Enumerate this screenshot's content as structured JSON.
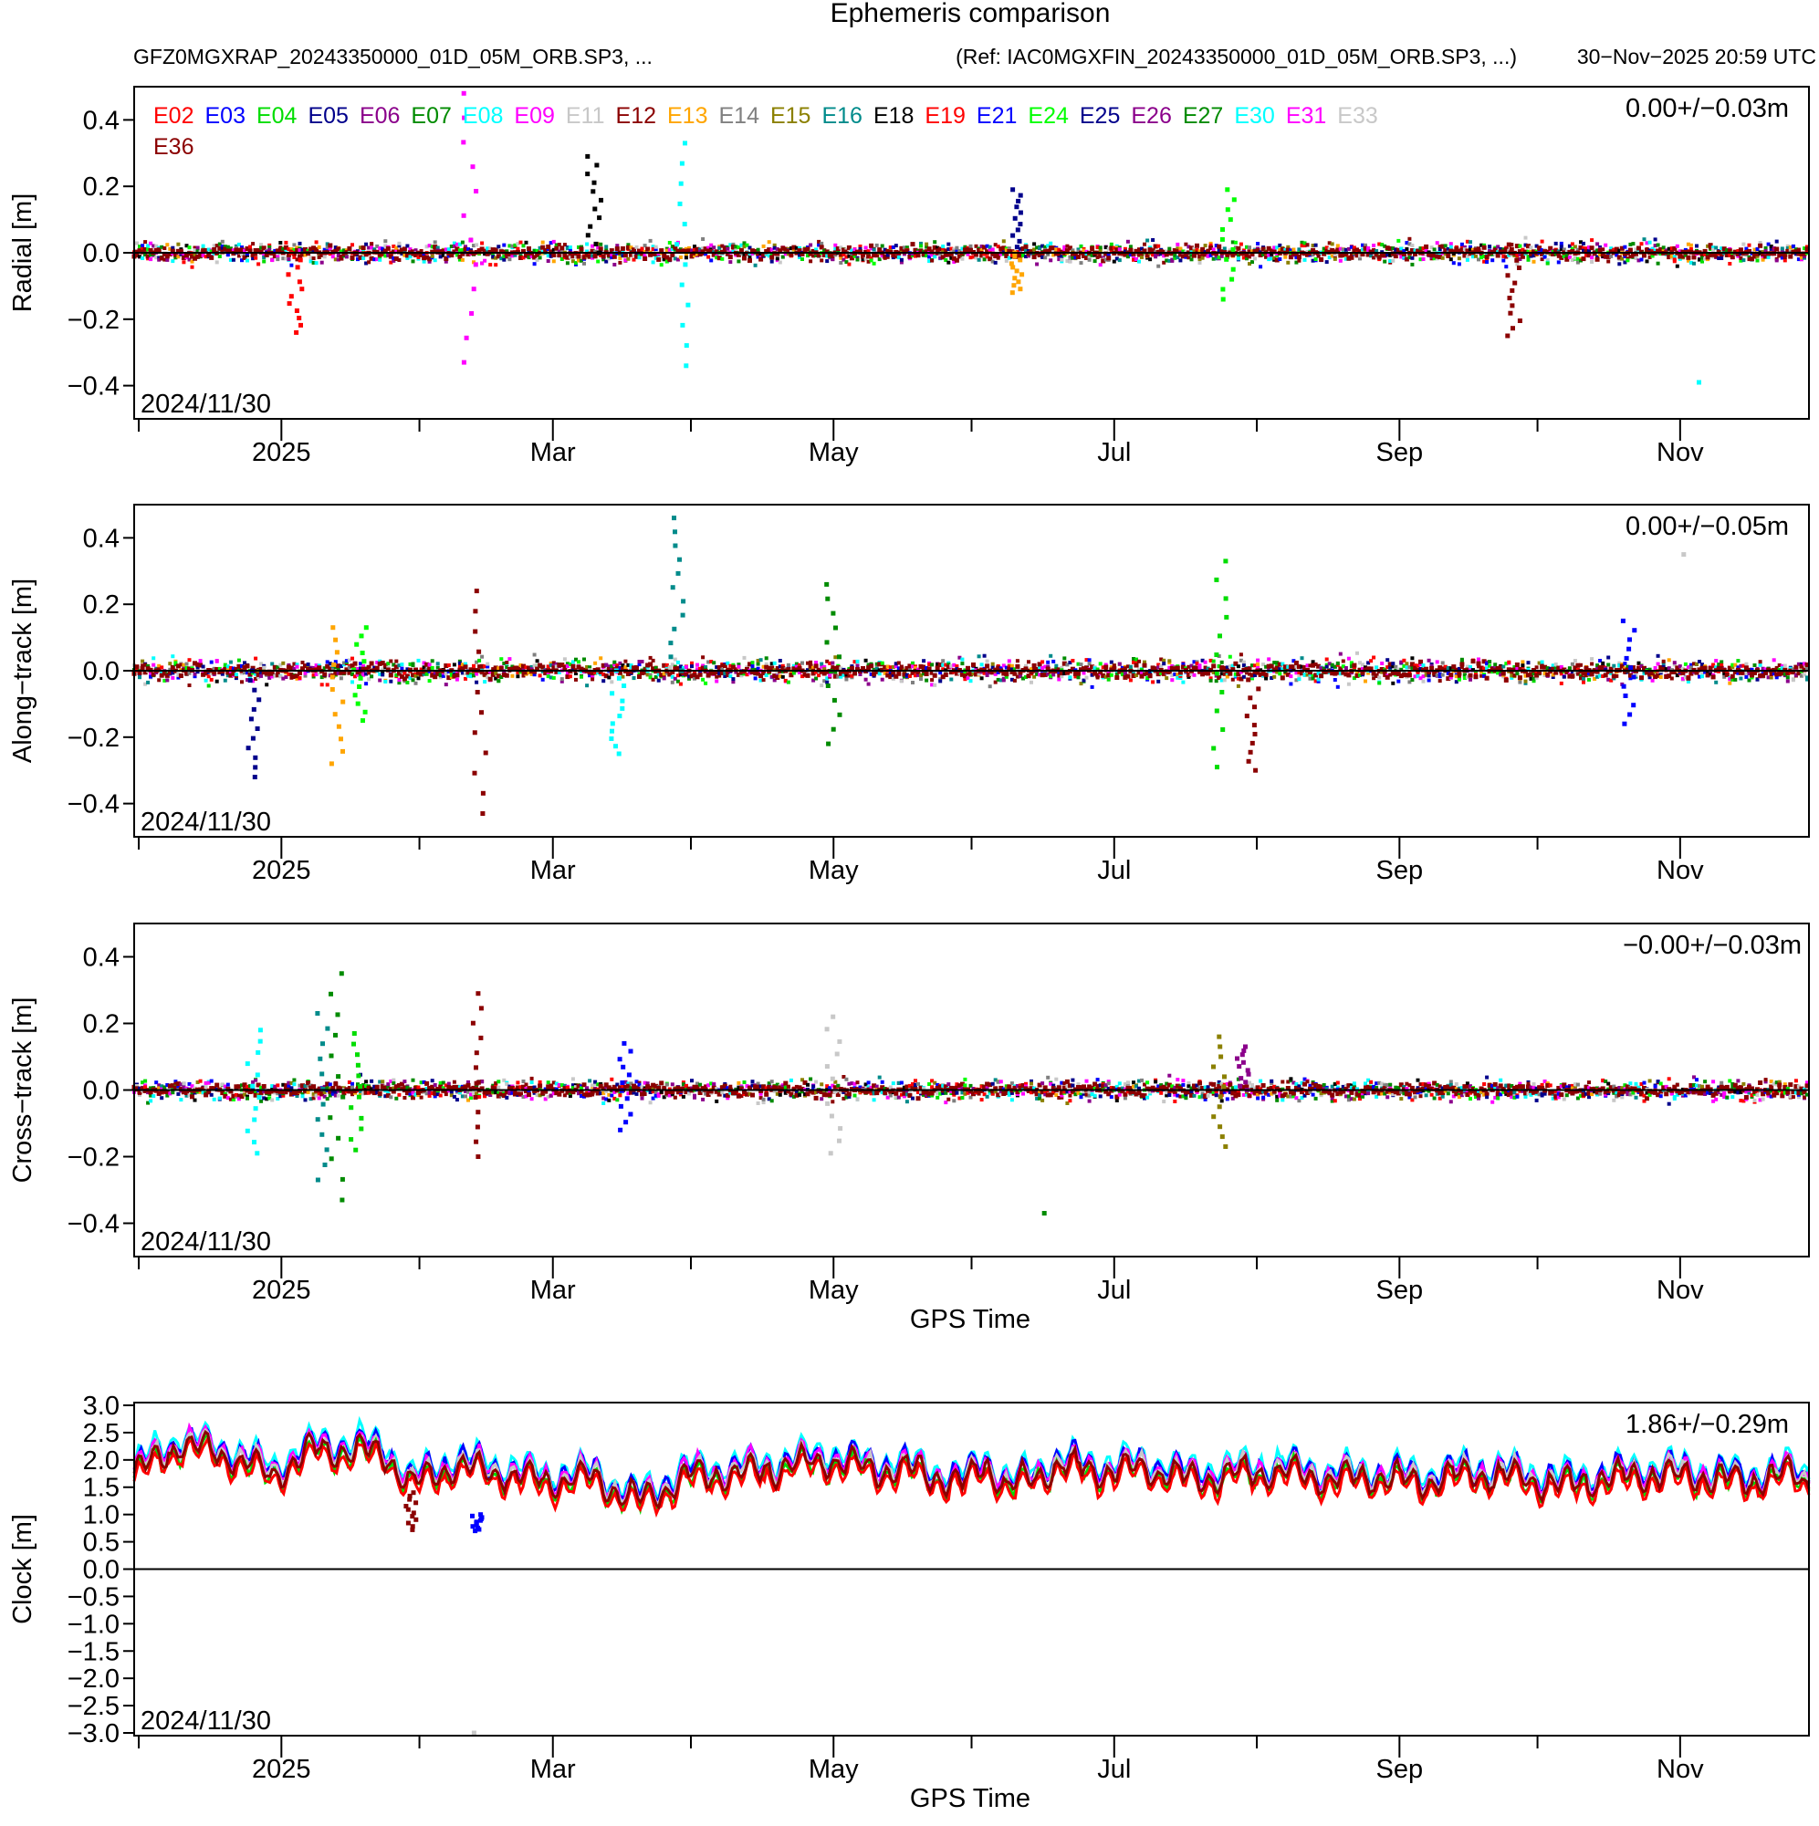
{
  "chart_data": {
    "title": "Ephemeris comparison",
    "header": {
      "left": "GFZ0MGXRAP_20243350000_01D_05M_ORB.SP3, ...",
      "ref": "(Ref: IAC0MGXFIN_20243350000_01D_05M_ORB.SP3, ...)",
      "generated": "30−Nov−2025 20:59 UTC"
    },
    "start_date": "2024/11/30",
    "x_ticks": [
      {
        "label": "2025",
        "day": 32
      },
      {
        "label": "Mar",
        "day": 91
      },
      {
        "label": "May",
        "day": 152
      },
      {
        "label": "Jul",
        "day": 213
      },
      {
        "label": "Sep",
        "day": 275
      },
      {
        "label": "Nov",
        "day": 336
      }
    ],
    "x_minor_days": [
      1,
      62,
      121,
      182,
      244,
      305,
      366
    ],
    "x_range_days": [
      0,
      364
    ],
    "legend": [
      {
        "sat": "E02",
        "color": "#ff0000"
      },
      {
        "sat": "E03",
        "color": "#0000ff"
      },
      {
        "sat": "E04",
        "color": "#00dd00"
      },
      {
        "sat": "E05",
        "color": "#00008b"
      },
      {
        "sat": "E06",
        "color": "#8b008b"
      },
      {
        "sat": "E07",
        "color": "#008b00"
      },
      {
        "sat": "E08",
        "color": "#00ffff"
      },
      {
        "sat": "E09",
        "color": "#ff00ff"
      },
      {
        "sat": "E11",
        "color": "#c8c8c8"
      },
      {
        "sat": "E12",
        "color": "#8b0000"
      },
      {
        "sat": "E13",
        "color": "#ffa500"
      },
      {
        "sat": "E14",
        "color": "#808080"
      },
      {
        "sat": "E15",
        "color": "#8b8000"
      },
      {
        "sat": "E16",
        "color": "#008b8b"
      },
      {
        "sat": "E18",
        "color": "#000000"
      },
      {
        "sat": "E19",
        "color": "#ff0000"
      },
      {
        "sat": "E21",
        "color": "#0000ff"
      },
      {
        "sat": "E24",
        "color": "#00ff00"
      },
      {
        "sat": "E25",
        "color": "#00008b"
      },
      {
        "sat": "E26",
        "color": "#8b008b"
      },
      {
        "sat": "E27",
        "color": "#008b00"
      },
      {
        "sat": "E30",
        "color": "#00ffff"
      },
      {
        "sat": "E31",
        "color": "#ff00ff"
      },
      {
        "sat": "E33",
        "color": "#c8c8c8"
      },
      {
        "sat": "E36",
        "color": "#8b0000"
      }
    ],
    "panels": [
      {
        "type": "scatter",
        "ylabel": "Radial [m]",
        "ylim": [
          -0.5,
          0.5
        ],
        "yticks": [
          0.4,
          0.2,
          0.0,
          -0.2,
          -0.4
        ],
        "ytick_labels": [
          "0.4",
          "0.2",
          "0.0",
          "−0.2",
          "−0.4"
        ],
        "stats": "0.00+/−0.03m",
        "xlabel": "",
        "spread": 0.03,
        "spikes": [
          {
            "day": 35,
            "min": -0.24,
            "max": 0.0
          },
          {
            "day": 73,
            "min": -0.33,
            "max": 0.48
          },
          {
            "day": 100,
            "min": 0.0,
            "max": 0.29
          },
          {
            "day": 119,
            "min": -0.34,
            "max": 0.33
          },
          {
            "day": 192,
            "min": 0.0,
            "max": 0.19
          },
          {
            "day": 192,
            "min": -0.12,
            "max": 0.0
          },
          {
            "day": 238,
            "min": -0.14,
            "max": 0.19
          },
          {
            "day": 300,
            "min": -0.25,
            "max": 0.0
          },
          {
            "day": 341,
            "min": -0.39,
            "max": -0.39
          }
        ]
      },
      {
        "type": "scatter",
        "ylabel": "Along−track [m]",
        "ylim": [
          -0.5,
          0.5
        ],
        "yticks": [
          0.4,
          0.2,
          0.0,
          -0.2,
          -0.4
        ],
        "ytick_labels": [
          "0.4",
          "0.2",
          "0.0",
          "−0.2",
          "−0.4"
        ],
        "stats": "0.00+/−0.05m",
        "xlabel": "",
        "spread": 0.035,
        "spikes": [
          {
            "day": 26,
            "min": -0.32,
            "max": 0.0
          },
          {
            "day": 44,
            "min": -0.28,
            "max": 0.13
          },
          {
            "day": 49,
            "min": -0.15,
            "max": 0.13
          },
          {
            "day": 75,
            "min": -0.43,
            "max": 0.24
          },
          {
            "day": 105,
            "min": -0.25,
            "max": 0.0
          },
          {
            "day": 118,
            "min": 0.0,
            "max": 0.46
          },
          {
            "day": 152,
            "min": -0.22,
            "max": 0.26
          },
          {
            "day": 236,
            "min": -0.29,
            "max": 0.33
          },
          {
            "day": 243,
            "min": -0.3,
            "max": 0.0
          },
          {
            "day": 325,
            "min": -0.16,
            "max": 0.15
          },
          {
            "day": 338,
            "min": 0.35,
            "max": 0.35
          }
        ]
      },
      {
        "type": "scatter",
        "ylabel": "Cross−track [m]",
        "ylim": [
          -0.5,
          0.5
        ],
        "yticks": [
          0.4,
          0.2,
          0.0,
          -0.2,
          -0.4
        ],
        "ytick_labels": [
          "0.4",
          "0.2",
          "0.0",
          "−0.2",
          "−0.4"
        ],
        "stats": "−0.00+/−0.03m",
        "xlabel": "GPS Time",
        "spread": 0.03,
        "spikes": [
          {
            "day": 26,
            "min": -0.19,
            "max": 0.18
          },
          {
            "day": 41,
            "min": -0.27,
            "max": 0.23
          },
          {
            "day": 44,
            "min": -0.33,
            "max": 0.35
          },
          {
            "day": 48,
            "min": -0.18,
            "max": 0.17
          },
          {
            "day": 75,
            "min": -0.2,
            "max": 0.29
          },
          {
            "day": 107,
            "min": -0.12,
            "max": 0.14
          },
          {
            "day": 152,
            "min": -0.19,
            "max": 0.22
          },
          {
            "day": 198,
            "min": -0.37,
            "max": -0.37
          },
          {
            "day": 236,
            "min": -0.17,
            "max": 0.16
          },
          {
            "day": 241,
            "min": 0.0,
            "max": 0.13
          }
        ]
      },
      {
        "type": "line",
        "ylabel": "Clock [m]",
        "ylim": [
          -3.05,
          3.05
        ],
        "yticks": [
          3.0,
          2.5,
          2.0,
          1.5,
          1.0,
          0.5,
          0.0,
          -0.5,
          -1.0,
          -1.5,
          -2.0,
          -2.5,
          -3.0
        ],
        "ytick_labels": [
          "3.0",
          "2.5",
          "2.0",
          "1.5",
          "1.0",
          "0.5",
          "0.0",
          "−0.5",
          "−1.0",
          "−1.5",
          "−2.0",
          "−2.5",
          "−3.0"
        ],
        "stats": "1.86+/−0.29m",
        "xlabel": "GPS Time",
        "series_days": [
          0,
          10,
          20,
          30,
          40,
          50,
          55,
          60,
          70,
          80,
          90,
          100,
          105,
          110,
          120,
          130,
          140,
          150,
          160,
          170,
          180,
          185,
          190,
          200,
          210,
          220,
          230,
          240,
          250,
          260,
          270,
          280,
          290,
          300,
          310,
          320,
          330,
          340,
          350,
          360,
          364
        ],
        "series_values": [
          1.75,
          2.3,
          2.1,
          1.75,
          2.2,
          2.15,
          2.1,
          1.55,
          1.9,
          1.75,
          1.6,
          1.7,
          1.4,
          1.25,
          1.7,
          1.75,
          1.85,
          2.0,
          1.85,
          1.8,
          1.55,
          1.95,
          1.45,
          1.9,
          1.8,
          1.85,
          1.65,
          1.75,
          1.8,
          1.65,
          1.7,
          1.6,
          1.75,
          1.7,
          1.55,
          1.65,
          1.75,
          1.7,
          1.6,
          1.75,
          1.6
        ],
        "spikes": [
          {
            "day": 60,
            "min": 0.72,
            "max": 1.4
          },
          {
            "day": 75,
            "min": 0.7,
            "max": 1.0
          },
          {
            "day": 75,
            "min": -3.0,
            "max": -3.0
          }
        ]
      }
    ]
  }
}
